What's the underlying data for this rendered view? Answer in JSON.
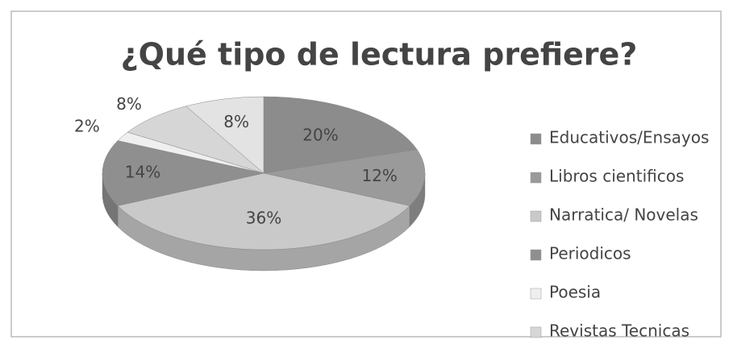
{
  "chart_data": {
    "type": "pie",
    "title": "¿Qué tipo de lectura prefiere?",
    "categories": [
      "Educativos/Ensayos",
      "Libros cientificos",
      "Narratica/ Novelas",
      "Periodicos",
      "Poesia",
      "Revistas Tecnicas",
      null
    ],
    "values": [
      20,
      12,
      36,
      14,
      2,
      8,
      8
    ],
    "value_labels": [
      "20%",
      "12%",
      "36%",
      "14%",
      "2%",
      "8%",
      "8%"
    ],
    "colors": [
      "#8c8c8c",
      "#9a9a9a",
      "#c9c9c9",
      "#8f8f8f",
      "#efefef",
      "#d6d6d6",
      "#e3e3e3"
    ],
    "legend": "right"
  }
}
